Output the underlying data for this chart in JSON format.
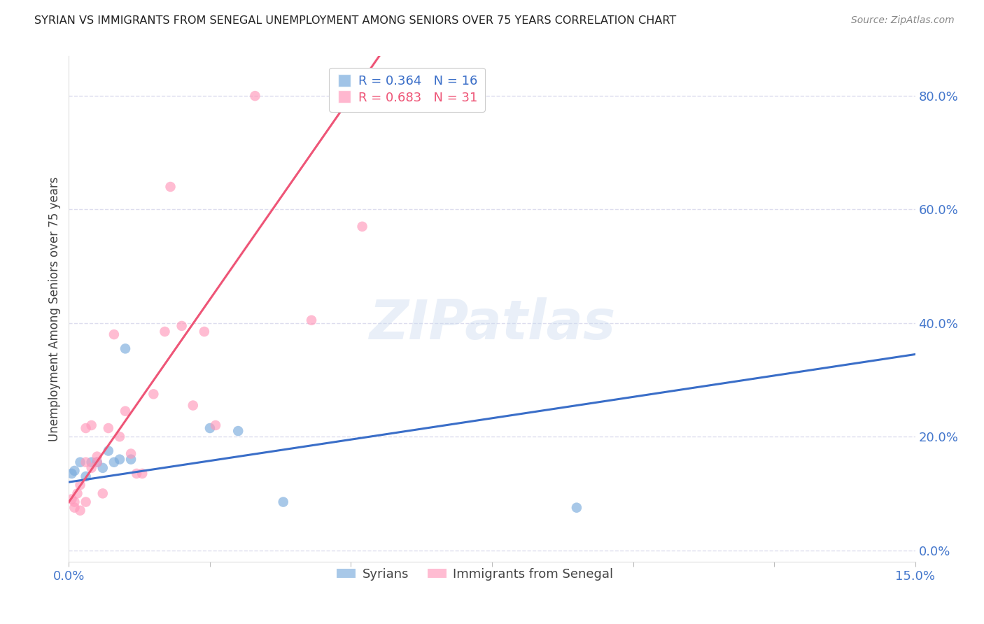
{
  "title": "SYRIAN VS IMMIGRANTS FROM SENEGAL UNEMPLOYMENT AMONG SENIORS OVER 75 YEARS CORRELATION CHART",
  "source": "Source: ZipAtlas.com",
  "ylabel": "Unemployment Among Seniors over 75 years",
  "xlim": [
    0.0,
    0.15
  ],
  "ylim": [
    -0.02,
    0.87
  ],
  "xticks": [
    0.0,
    0.025,
    0.05,
    0.075,
    0.1,
    0.125,
    0.15
  ],
  "xtick_labels": [
    "0.0%",
    "",
    "",
    "",
    "",
    "",
    "15.0%"
  ],
  "ytick_right_labels": [
    "0.0%",
    "20.0%",
    "40.0%",
    "60.0%",
    "80.0%"
  ],
  "ytick_right_values": [
    0.0,
    0.2,
    0.4,
    0.6,
    0.8
  ],
  "legend_blue_r": "R = 0.364",
  "legend_blue_n": "N = 16",
  "legend_pink_r": "R = 0.683",
  "legend_pink_n": "N = 31",
  "syrians_x": [
    0.0005,
    0.001,
    0.002,
    0.003,
    0.004,
    0.005,
    0.006,
    0.007,
    0.008,
    0.009,
    0.01,
    0.011,
    0.025,
    0.03,
    0.038,
    0.09
  ],
  "syrians_y": [
    0.135,
    0.14,
    0.155,
    0.13,
    0.155,
    0.155,
    0.145,
    0.175,
    0.155,
    0.16,
    0.355,
    0.16,
    0.215,
    0.21,
    0.085,
    0.075
  ],
  "senegal_x": [
    0.0005,
    0.001,
    0.001,
    0.0015,
    0.002,
    0.002,
    0.003,
    0.003,
    0.003,
    0.004,
    0.004,
    0.005,
    0.005,
    0.006,
    0.007,
    0.008,
    0.009,
    0.01,
    0.011,
    0.012,
    0.013,
    0.015,
    0.017,
    0.018,
    0.02,
    0.022,
    0.024,
    0.026,
    0.033,
    0.043,
    0.052
  ],
  "senegal_y": [
    0.09,
    0.085,
    0.075,
    0.1,
    0.07,
    0.115,
    0.085,
    0.155,
    0.215,
    0.145,
    0.22,
    0.155,
    0.165,
    0.1,
    0.215,
    0.38,
    0.2,
    0.245,
    0.17,
    0.135,
    0.135,
    0.275,
    0.385,
    0.64,
    0.395,
    0.255,
    0.385,
    0.22,
    0.8,
    0.405,
    0.57
  ],
  "blue_line_x": [
    0.0,
    0.15
  ],
  "blue_line_y": [
    0.12,
    0.345
  ],
  "pink_line_x": [
    0.0,
    0.055
  ],
  "pink_line_y": [
    0.085,
    0.87
  ],
  "dot_size": 110,
  "blue_color": "#7AABDD",
  "pink_color": "#FF99BB",
  "blue_line_color": "#3A6EC8",
  "pink_line_color": "#EE5577",
  "background_color": "#FFFFFF",
  "grid_color": "#DDDDEE",
  "title_color": "#222222",
  "axis_label_color": "#444444",
  "right_axis_color": "#4477CC",
  "watermark_text": "ZIPatlas",
  "watermark_color": "#C8D8EE",
  "watermark_alpha": 0.4
}
